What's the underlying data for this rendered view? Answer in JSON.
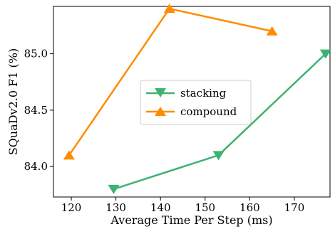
{
  "chart_data": {
    "type": "line",
    "title": "",
    "xlabel": "Average Time Per Step (ms)",
    "ylabel": "SQuaDv2.0 F1 (%)",
    "xlim": [
      116,
      178
    ],
    "ylim": [
      83.73,
      85.42
    ],
    "xticks": [
      120,
      130,
      140,
      150,
      160,
      170
    ],
    "xtick_labels": [
      "120",
      "130",
      "140",
      "150",
      "160",
      "170"
    ],
    "yticks": [
      84.0,
      84.5,
      85.0
    ],
    "ytick_labels": [
      "84.0",
      "84.5",
      "85.0"
    ],
    "grid": false,
    "legend_position": "center",
    "series": [
      {
        "name": "stacking",
        "color": "#3cb371",
        "marker": "triangle-down",
        "x": [
          129.5,
          153,
          177
        ],
        "y": [
          83.8,
          84.1,
          85.0
        ]
      },
      {
        "name": "compound",
        "color": "#ff8c00",
        "marker": "triangle-up",
        "x": [
          119.5,
          142,
          165
        ],
        "y": [
          84.1,
          85.4,
          85.2
        ]
      }
    ]
  }
}
